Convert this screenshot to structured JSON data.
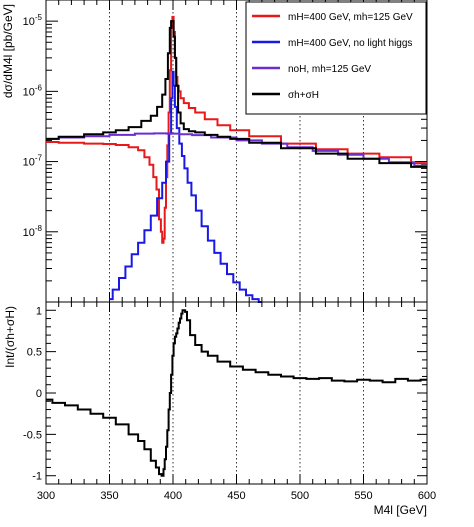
{
  "chart_data": [
    {
      "type": "line",
      "panel": "top",
      "ylabel": "dσ/dM4l [pb/GeV]",
      "y_scale": "log",
      "xlim": [
        300,
        600
      ],
      "ylim": [
        1e-09,
        2e-05
      ],
      "y_tick_labels": [
        "10^-8",
        "10^-7",
        "10^-6",
        "10^-5"
      ],
      "y_tick_values": [
        1e-08,
        1e-07,
        1e-06,
        1e-05
      ],
      "grid": "vertical dotted at 350, 400, 450, 500, 550",
      "legend_placement": "top-right",
      "series": [
        {
          "name": "mH=400 GeV, mh=125 GeV",
          "color": "#e8191b",
          "x": [
            300,
            320,
            340,
            350,
            360,
            370,
            375,
            380,
            383,
            386,
            388,
            390,
            391,
            392,
            393,
            394,
            395,
            396,
            397,
            398,
            399,
            400,
            401,
            402,
            403,
            404,
            405,
            407,
            410,
            415,
            420,
            430,
            440,
            450,
            470,
            500,
            525,
            550,
            575,
            600
          ],
          "y": [
            1.9e-07,
            1.85e-07,
            1.8e-07,
            1.78e-07,
            1.72e-07,
            1.6e-07,
            1.45e-07,
            1.15e-07,
            9e-08,
            6e-08,
            4e-08,
            1.5e-08,
            1e-08,
            7e-09,
            8e-09,
            2.2e-08,
            6e-08,
            1.7e-07,
            5e-07,
            2e-06,
            8e-06,
            1.15e-05,
            7e-06,
            3e-06,
            1.6e-06,
            1.2e-06,
            1e-06,
            8e-07,
            6.8e-07,
            5.8e-07,
            5e-07,
            4e-07,
            3.3e-07,
            2.8e-07,
            2.3e-07,
            1.8e-07,
            1.5e-07,
            1.3e-07,
            1.15e-07,
            9.5e-08
          ]
        },
        {
          "name": "mH=400 GeV, no light higgs",
          "color": "#1919e6",
          "x": [
            350,
            355,
            360,
            365,
            370,
            375,
            380,
            385,
            390,
            393,
            396,
            398,
            399,
            400,
            401,
            402,
            404,
            406,
            408,
            410,
            413,
            416,
            420,
            425,
            430,
            435,
            440,
            445,
            450,
            455,
            460,
            465,
            470
          ],
          "y": [
            1.1e-09,
            1.5e-09,
            2.2e-09,
            3.2e-09,
            4.8e-09,
            7e-09,
            1.05e-08,
            1.7e-08,
            3e-08,
            5e-08,
            1e-07,
            2.5e-07,
            8e-07,
            1.9e-06,
            1.2e-06,
            6e-07,
            3e-07,
            1.8e-07,
            1.2e-07,
            8e-08,
            5e-08,
            3.3e-08,
            2e-08,
            1.2e-08,
            7.5e-09,
            5e-09,
            3.5e-09,
            2.5e-09,
            1.9e-09,
            1.5e-09,
            1.25e-09,
            1.1e-09,
            1e-09
          ]
        },
        {
          "name": "noH, mh=125 GeV",
          "color": "#6b2fd1",
          "x": [
            300,
            320,
            340,
            360,
            380,
            390,
            400,
            410,
            420,
            440,
            460,
            480,
            500,
            520,
            540,
            560,
            580,
            600
          ],
          "y": [
            2.1e-07,
            2.2e-07,
            2.3e-07,
            2.4e-07,
            2.5e-07,
            2.52e-07,
            2.5e-07,
            2.45e-07,
            2.38e-07,
            2.2e-07,
            2e-07,
            1.8e-07,
            1.6e-07,
            1.42e-07,
            1.25e-07,
            1.1e-07,
            9.8e-08,
            8.7e-08
          ]
        },
        {
          "name": "σh+σH",
          "color": "#000000",
          "x": [
            300,
            320,
            340,
            350,
            360,
            370,
            380,
            385,
            390,
            393,
            395,
            397,
            398,
            399,
            400,
            401,
            402,
            403,
            405,
            407,
            410,
            415,
            420,
            430,
            440,
            450,
            470,
            500,
            525,
            550,
            575,
            600
          ],
          "y": [
            2.1e-07,
            2.25e-07,
            2.45e-07,
            2.6e-07,
            2.8e-07,
            3.1e-07,
            3.8e-07,
            4.5e-07,
            6e-07,
            9e-07,
            1.5e-06,
            3.5e-06,
            8e-06,
            1e-05,
            1e-05,
            6e-06,
            3e-06,
            1.2e-06,
            5e-07,
            3.5e-07,
            2.9e-07,
            2.7e-07,
            2.6e-07,
            2.4e-07,
            2.25e-07,
            2.1e-07,
            1.85e-07,
            1.55e-07,
            1.3e-07,
            1.1e-07,
            9.5e-08,
            8.4e-08
          ]
        }
      ]
    },
    {
      "type": "line",
      "panel": "bottom",
      "ylabel": "Int/(σh+σH)",
      "xlabel": "M4l [GeV]",
      "xlim": [
        300,
        600
      ],
      "ylim": [
        -1.1,
        1.1
      ],
      "x_tick_labels": [
        "300",
        "350",
        "400",
        "450",
        "500",
        "550",
        "600"
      ],
      "x_tick_values": [
        300,
        350,
        400,
        450,
        500,
        550,
        600
      ],
      "y_tick_labels": [
        "-1",
        "-0.5",
        "0",
        "0.5",
        "1"
      ],
      "y_tick_values": [
        -1,
        -0.5,
        0,
        0.5,
        1
      ],
      "grid": "vertical dotted at 350, 400, 450, 500, 550",
      "series": [
        {
          "color": "#000000",
          "x": [
            300,
            310,
            320,
            330,
            340,
            350,
            360,
            370,
            375,
            380,
            385,
            388,
            390,
            392,
            393,
            394,
            395,
            396,
            397,
            398,
            399,
            400,
            401,
            402,
            403,
            404,
            405,
            406,
            407,
            408,
            409,
            410,
            412,
            415,
            420,
            425,
            430,
            440,
            450,
            460,
            470,
            480,
            490,
            500,
            510,
            520,
            530,
            540,
            550,
            560,
            570,
            580,
            590,
            600
          ],
          "y": [
            -0.08,
            -0.12,
            -0.15,
            -0.2,
            -0.25,
            -0.3,
            -0.38,
            -0.5,
            -0.58,
            -0.68,
            -0.82,
            -0.9,
            -0.98,
            -1.0,
            -0.92,
            -0.8,
            -0.65,
            -0.45,
            -0.2,
            0.0,
            0.22,
            0.45,
            0.6,
            0.68,
            0.72,
            0.78,
            0.85,
            0.9,
            0.96,
            1.0,
            1.0,
            0.98,
            0.88,
            0.7,
            0.58,
            0.5,
            0.45,
            0.38,
            0.32,
            0.28,
            0.25,
            0.22,
            0.2,
            0.18,
            0.17,
            0.18,
            0.15,
            0.14,
            0.16,
            0.15,
            0.13,
            0.17,
            0.15,
            0.16
          ]
        }
      ]
    }
  ]
}
